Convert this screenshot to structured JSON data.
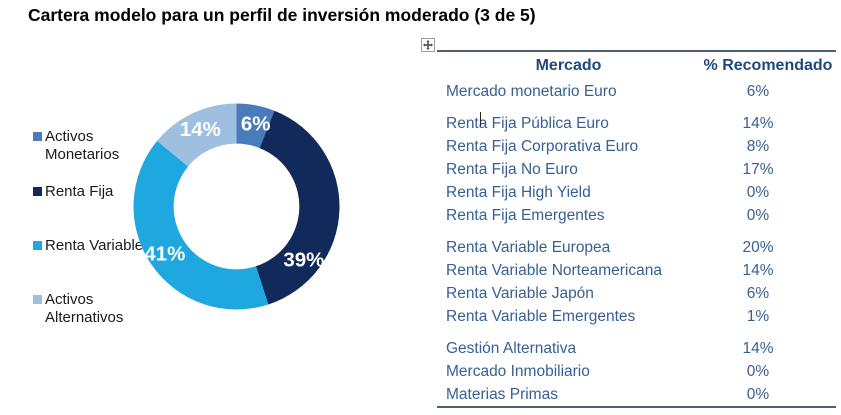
{
  "title": "Cartera modelo para un perfil de inversión moderado (3 de 5)",
  "colors": {
    "activos_monetarios": "#4A7CBB",
    "renta_fija": "#12295B",
    "renta_variable": "#1FA8E0",
    "activos_alternativos": "#9FBFE0",
    "donut_label_text": "#FFFFFF",
    "table_header_text": "#1F497D",
    "table_body_text": "#376092",
    "table_border": "#4D5F75",
    "legend_text": "#1A1A1A"
  },
  "icons": {
    "table_handle": "move-handle-icon"
  },
  "chart_data": {
    "type": "pie",
    "subtype": "donut",
    "title": "",
    "legend_position": "left",
    "start_angle_deg": 0,
    "direction": "clockwise",
    "hole_ratio": 0.61,
    "data_labels": "percent-inside-white-bold",
    "slices": [
      {
        "label": "Activos Monetarios",
        "value": 6,
        "display": "6%",
        "color": "#4A7CBB",
        "label_angle": 13
      },
      {
        "label": "Renta Fija",
        "value": 39,
        "display": "39%",
        "color": "#12295B",
        "label_angle": 128
      },
      {
        "label": "Renta Variable",
        "value": 41,
        "display": "41%",
        "color": "#1FA8E0",
        "label_angle": 237
      },
      {
        "label": "Activos Alternativos",
        "value": 14,
        "display": "14%",
        "color": "#9FBFE0",
        "label_angle": 335
      }
    ]
  },
  "table": {
    "columns": [
      "Mercado",
      "% Recomendado"
    ],
    "groups": [
      {
        "rows": [
          {
            "market": "Mercado monetario Euro",
            "pct": "6%"
          }
        ]
      },
      {
        "rows": [
          {
            "market": "Renta Fija Pública Euro",
            "pct": "14%"
          },
          {
            "market": "Renta Fija Corporativa Euro",
            "pct": "8%"
          },
          {
            "market": "Renta Fija No Euro",
            "pct": "17%"
          },
          {
            "market": "Renta Fija High Yield",
            "pct": "0%"
          },
          {
            "market": "Renta Fija Emergentes",
            "pct": "0%"
          }
        ]
      },
      {
        "rows": [
          {
            "market": "Renta Variable Europea",
            "pct": "20%"
          },
          {
            "market": "Renta Variable Norteamericana",
            "pct": "14%"
          },
          {
            "market": "Renta Variable Japón",
            "pct": "6%"
          },
          {
            "market": "Renta Variable Emergentes",
            "pct": "1%"
          }
        ]
      },
      {
        "rows": [
          {
            "market": "Gestión Alternativa",
            "pct": "14%"
          },
          {
            "market": "Mercado Inmobiliario",
            "pct": "0%"
          },
          {
            "market": "Materias Primas",
            "pct": "0%"
          }
        ]
      }
    ]
  }
}
